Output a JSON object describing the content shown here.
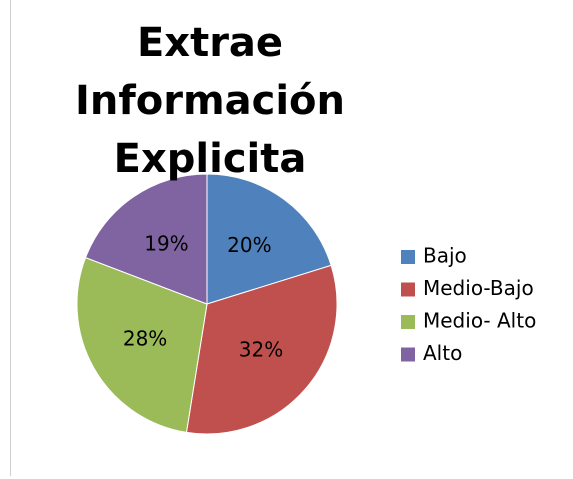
{
  "chart_data": {
    "type": "pie",
    "title": "Extrae Información Explicita",
    "categories": [
      "Bajo",
      "Medio-Bajo",
      "Medio- Alto",
      "Alto"
    ],
    "values": [
      20,
      32,
      28,
      19
    ],
    "value_labels": [
      "20%",
      "32%",
      "28%",
      "19%"
    ],
    "colors": [
      "#4f81bd",
      "#c0504d",
      "#9bbb59",
      "#8064a2"
    ],
    "legend": "right"
  }
}
